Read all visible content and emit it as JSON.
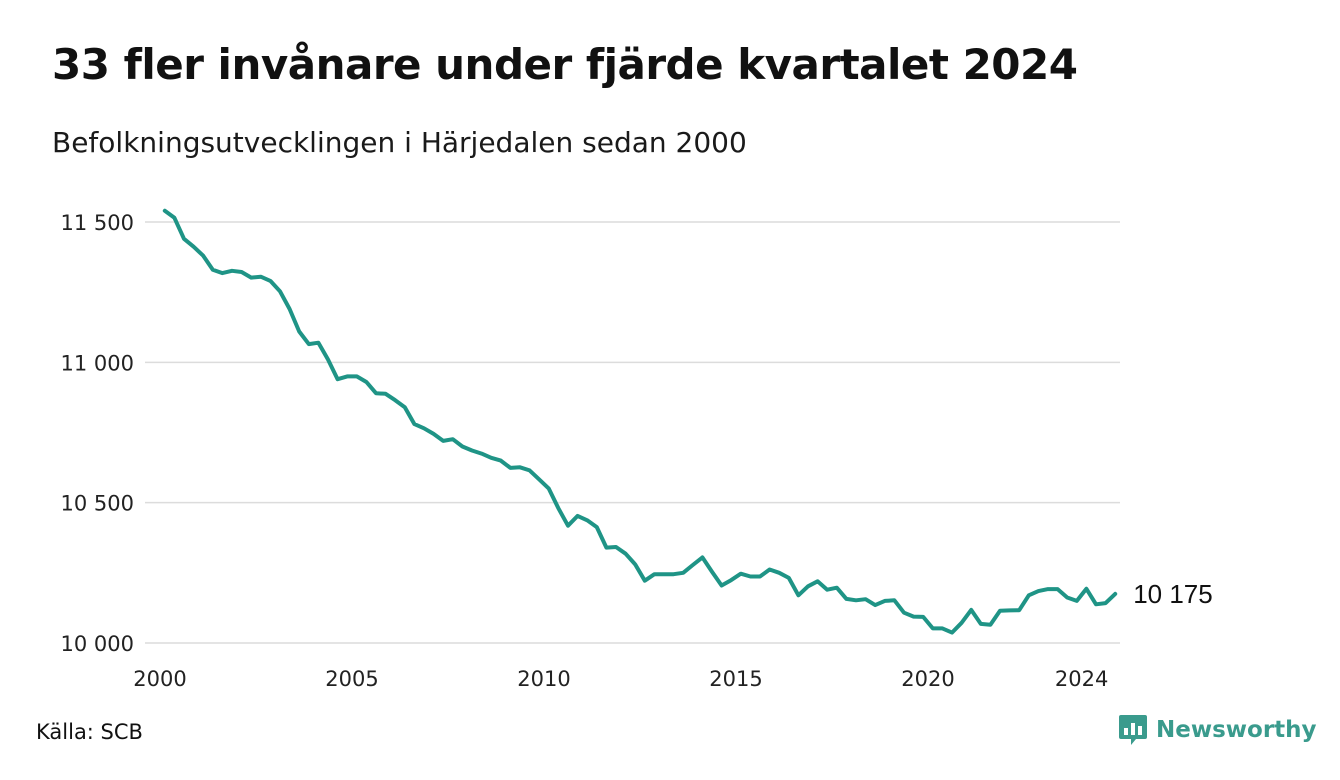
{
  "title": "33 fler invånare under fjärde kvartalet 2024",
  "subtitle": "Befolkningsutvecklingen i Härjedalen sedan 2000",
  "source": "Källa: SCB",
  "brand": {
    "name": "Newsworthy",
    "icon": "newsworthy-logo-icon",
    "color": "#3a9b8d"
  },
  "chart_data": {
    "type": "line",
    "title": "33 fler invånare under fjärde kvartalet 2024",
    "subtitle": "Befolkningsutvecklingen i Härjedalen sedan 2000",
    "xlabel": "",
    "ylabel": "",
    "xlim": [
      2000,
      2025
    ],
    "ylim": [
      10000,
      11550
    ],
    "grid": "horizontal",
    "line_color": "#1f9486",
    "x_ticks": [
      2000,
      2005,
      2010,
      2015,
      2020,
      2024
    ],
    "y_ticks": [
      {
        "value": 10000,
        "label": "10 000"
      },
      {
        "value": 10500,
        "label": "10 500"
      },
      {
        "value": 11000,
        "label": "11 000"
      },
      {
        "value": 11500,
        "label": "11 500"
      }
    ],
    "end_label": "10 175",
    "series": [
      {
        "values": [
          11540,
          11515,
          11440,
          11412,
          11380,
          11330,
          11318,
          11326,
          11322,
          11302,
          11305,
          11290,
          11253,
          11190,
          11110,
          11065,
          11070,
          11010,
          10940,
          10950,
          10950,
          10930,
          10890,
          10888,
          10865,
          10840,
          10780,
          10765,
          10745,
          10720,
          10726,
          10700,
          10686,
          10675,
          10660,
          10650,
          10624,
          10626,
          10615,
          10583,
          10550,
          10480,
          10418,
          10453,
          10437,
          10413,
          10340,
          10342,
          10318,
          10280,
          10222,
          10245,
          10245,
          10245,
          10250,
          10278,
          10305,
          10254,
          10205,
          10224,
          10247,
          10237,
          10237,
          10262,
          10250,
          10232,
          10170,
          10202,
          10220,
          10190,
          10197,
          10157,
          10152,
          10156,
          10135,
          10150,
          10152,
          10108,
          10094,
          10093,
          10052,
          10052,
          10037,
          10072,
          10118,
          10068,
          10065,
          10115,
          10116,
          10117,
          10170,
          10185,
          10192,
          10192,
          10162,
          10150,
          10193,
          10138,
          10142,
          10175
        ]
      }
    ]
  }
}
